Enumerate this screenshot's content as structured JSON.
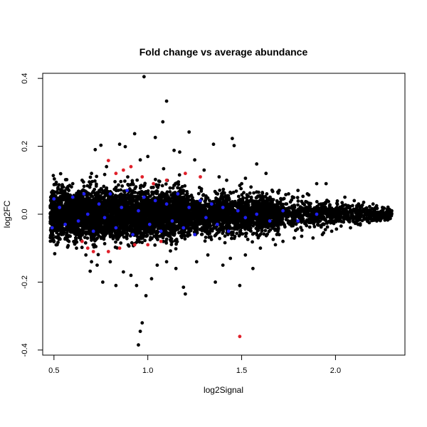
{
  "chart_data": {
    "type": "scatter",
    "title": "Fold change vs average abundance",
    "xlabel": "log2Signal",
    "ylabel": "log2FC",
    "xlim": [
      0.44,
      2.37
    ],
    "ylim": [
      -0.415,
      0.415
    ],
    "x_ticks": [
      0.5,
      1.0,
      1.5,
      2.0
    ],
    "x_tick_labels": [
      "0.5",
      "1.0",
      "1.5",
      "2.0"
    ],
    "y_ticks": [
      -0.4,
      -0.2,
      0.0,
      0.2,
      0.4
    ],
    "y_tick_labels": [
      "-0.4",
      "-0.2",
      "0.0",
      "0.2",
      "0.4"
    ],
    "grid": false,
    "legend": "none",
    "colors": {
      "background": "#ffffff",
      "black_points": "#000000",
      "blue_points": "#1e1ef0",
      "red_points": "#e0202a"
    },
    "series": [
      {
        "color": "#000000",
        "values": [
          [
            0.98,
            0.405
          ],
          [
            1.1,
            0.333
          ],
          [
            1.08,
            0.272
          ],
          [
            0.93,
            0.237
          ],
          [
            1.22,
            0.242
          ],
          [
            1.04,
            0.226
          ],
          [
            1.45,
            0.223
          ],
          [
            0.85,
            0.206
          ],
          [
            0.75,
            0.203
          ],
          [
            0.88,
            0.199
          ],
          [
            1.14,
            0.188
          ],
          [
            1.17,
            0.183
          ],
          [
            1.46,
            0.202
          ],
          [
            1.35,
            0.206
          ],
          [
            0.72,
            0.19
          ],
          [
            1.58,
            0.148
          ],
          [
            1.63,
            0.12
          ],
          [
            1.0,
            0.17
          ],
          [
            0.96,
            0.16
          ],
          [
            1.25,
            0.16
          ],
          [
            0.55,
            0.08
          ],
          [
            0.6,
            0.09
          ],
          [
            0.65,
            0.1
          ],
          [
            0.7,
            0.12
          ],
          [
            0.78,
            0.14
          ],
          [
            1.3,
            0.13
          ],
          [
            1.38,
            0.11
          ],
          [
            1.42,
            0.1
          ],
          [
            1.5,
            0.09
          ],
          [
            1.55,
            0.08
          ],
          [
            1.7,
            0.07
          ],
          [
            1.75,
            0.06
          ],
          [
            1.8,
            0.07
          ],
          [
            1.85,
            0.06
          ],
          [
            1.9,
            0.09
          ],
          [
            1.95,
            0.09
          ],
          [
            2.05,
            0.05
          ],
          [
            2.1,
            0.04
          ],
          [
            2.15,
            0.035
          ],
          [
            2.2,
            0.03
          ],
          [
            2.25,
            0.02
          ],
          [
            2.3,
            0.01
          ],
          [
            2.28,
            -0.005
          ],
          [
            2.22,
            -0.02
          ],
          [
            2.18,
            -0.025
          ],
          [
            2.12,
            -0.03
          ],
          [
            2.08,
            -0.04
          ],
          [
            2.03,
            -0.035
          ],
          [
            1.98,
            -0.05
          ],
          [
            1.93,
            -0.06
          ],
          [
            1.88,
            -0.07
          ],
          [
            1.82,
            -0.065
          ],
          [
            1.78,
            -0.07
          ],
          [
            1.72,
            -0.08
          ],
          [
            1.68,
            -0.09
          ],
          [
            1.6,
            -0.1
          ],
          [
            1.56,
            -0.16
          ],
          [
            1.52,
            -0.12
          ],
          [
            1.49,
            -0.21
          ],
          [
            1.44,
            -0.13
          ],
          [
            1.4,
            -0.15
          ],
          [
            1.36,
            -0.2
          ],
          [
            1.32,
            -0.12
          ],
          [
            1.26,
            -0.14
          ],
          [
            1.2,
            -0.235
          ],
          [
            1.19,
            -0.215
          ],
          [
            1.15,
            -0.16
          ],
          [
            1.1,
            -0.14
          ],
          [
            1.05,
            -0.15
          ],
          [
            1.02,
            -0.19
          ],
          [
            0.99,
            -0.24
          ],
          [
            0.97,
            -0.32
          ],
          [
            0.96,
            -0.345
          ],
          [
            0.95,
            -0.385
          ],
          [
            0.94,
            -0.21
          ],
          [
            0.91,
            -0.18
          ],
          [
            0.87,
            -0.17
          ],
          [
            0.83,
            -0.21
          ],
          [
            0.8,
            -0.14
          ],
          [
            0.76,
            -0.2
          ],
          [
            0.73,
            -0.15
          ],
          [
            0.7,
            -0.14
          ],
          [
            0.67,
            -0.12
          ],
          [
            0.62,
            -0.1
          ],
          [
            0.58,
            -0.08
          ],
          [
            0.54,
            -0.06
          ],
          [
            0.5,
            -0.04
          ],
          [
            0.49,
            0.01
          ],
          [
            0.5,
            0.03
          ],
          [
            0.52,
            -0.02
          ]
        ]
      },
      {
        "color": "#1e1ef0",
        "values": [
          [
            0.5,
            0.045
          ],
          [
            0.49,
            -0.04
          ],
          [
            0.53,
            0.02
          ],
          [
            0.56,
            -0.03
          ],
          [
            0.6,
            0.05
          ],
          [
            0.63,
            -0.02
          ],
          [
            0.66,
            0.06
          ],
          [
            0.68,
            0.0
          ],
          [
            0.71,
            -0.05
          ],
          [
            0.74,
            0.03
          ],
          [
            0.77,
            -0.01
          ],
          [
            0.8,
            0.06
          ],
          [
            0.83,
            -0.04
          ],
          [
            0.86,
            0.02
          ],
          [
            0.89,
            0.07
          ],
          [
            0.92,
            -0.06
          ],
          [
            0.95,
            0.01
          ],
          [
            0.98,
            0.05
          ],
          [
            1.01,
            -0.03
          ],
          [
            1.04,
            0.04
          ],
          [
            1.07,
            -0.05
          ],
          [
            1.1,
            0.03
          ],
          [
            1.13,
            -0.02
          ],
          [
            1.16,
            0.06
          ],
          [
            1.19,
            -0.04
          ],
          [
            1.22,
            0.02
          ],
          [
            1.25,
            -0.06
          ],
          [
            1.28,
            0.04
          ],
          [
            1.31,
            -0.01
          ],
          [
            1.34,
            0.03
          ],
          [
            1.37,
            -0.03
          ],
          [
            1.4,
            0.02
          ],
          [
            1.43,
            -0.05
          ],
          [
            1.48,
            0.01
          ],
          [
            1.52,
            -0.01
          ],
          [
            1.58,
            0.0
          ],
          [
            1.65,
            -0.02
          ],
          [
            1.72,
            0.01
          ],
          [
            1.8,
            -0.02
          ],
          [
            1.9,
            0.0
          ]
        ]
      },
      {
        "color": "#e0202a",
        "values": [
          [
            0.79,
            0.158
          ],
          [
            0.83,
            0.12
          ],
          [
            0.87,
            0.13
          ],
          [
            0.91,
            0.14
          ],
          [
            0.97,
            0.11
          ],
          [
            1.03,
            0.09
          ],
          [
            1.1,
            0.1
          ],
          [
            1.2,
            0.12
          ],
          [
            1.28,
            0.11
          ],
          [
            0.65,
            -0.08
          ],
          [
            0.68,
            -0.1
          ],
          [
            0.71,
            -0.11
          ],
          [
            0.79,
            -0.11
          ],
          [
            0.85,
            -0.1
          ],
          [
            0.93,
            -0.09
          ],
          [
            1.0,
            -0.09
          ],
          [
            1.07,
            -0.08
          ],
          [
            1.49,
            -0.36
          ]
        ]
      }
    ]
  }
}
